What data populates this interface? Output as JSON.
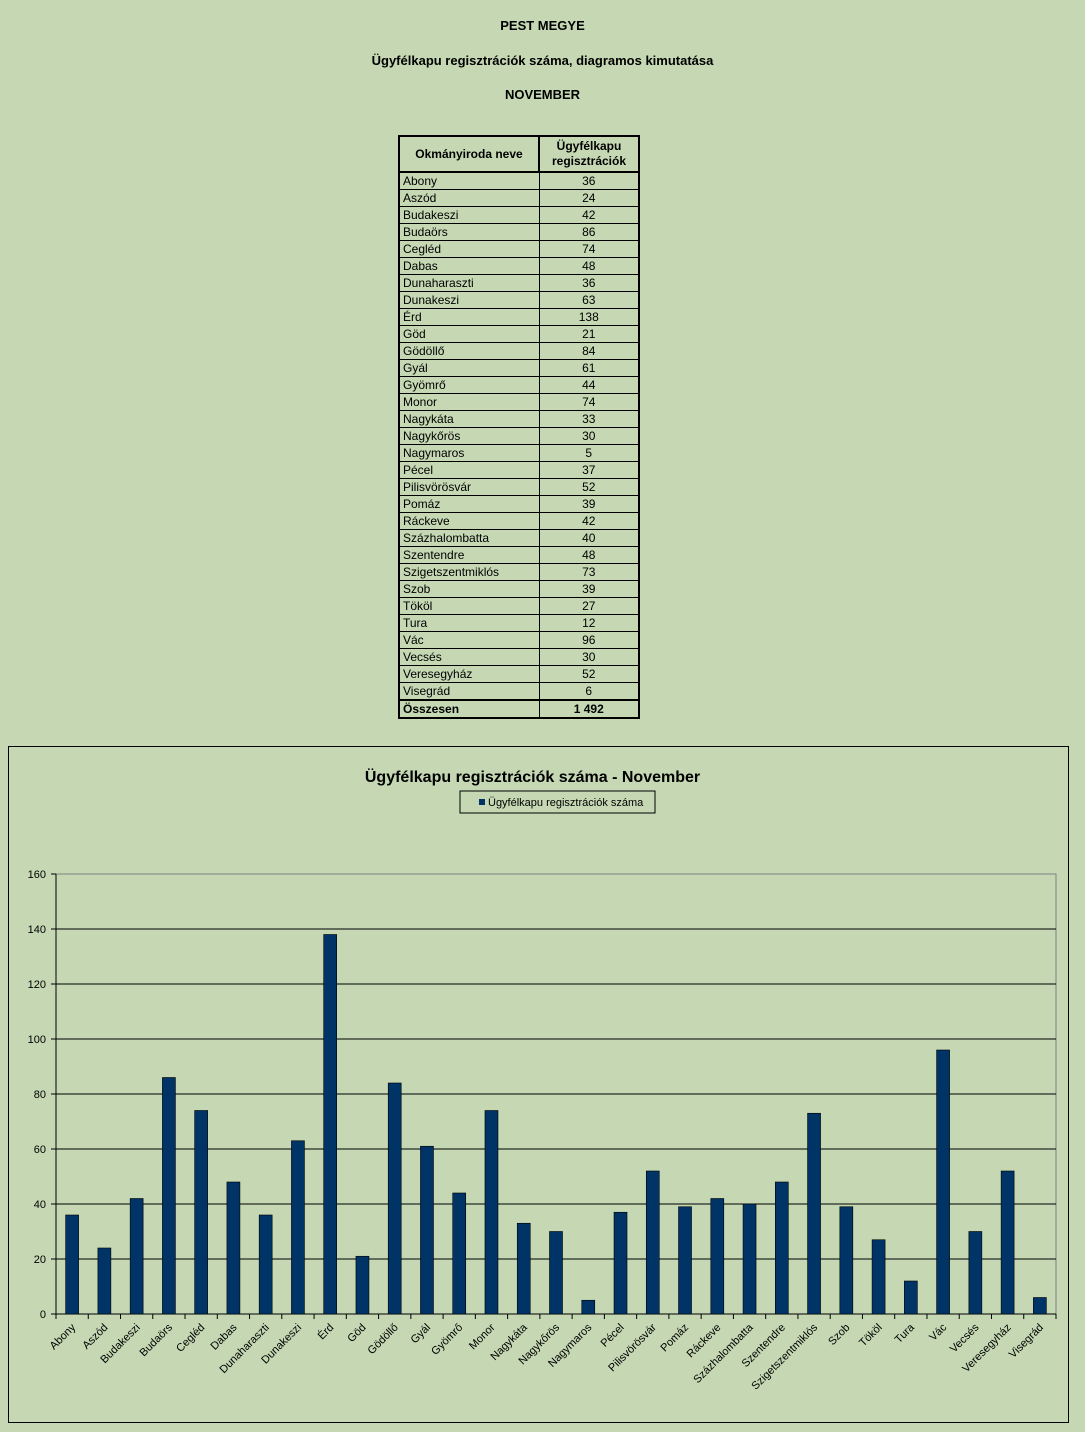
{
  "header": {
    "title1": "PEST MEGYE",
    "title2": "Ügyfélkapu regisztrációk száma, diagramos kimutatása",
    "title3": "NOVEMBER"
  },
  "table": {
    "col1": "Okmányiroda neve",
    "col2_line1": "Ügyfélkapu",
    "col2_line2": "regisztrációk",
    "total_label": "Összesen",
    "total_value": "1 492"
  },
  "chart_data": {
    "type": "bar",
    "title": "Ügyfélkapu regisztrációk száma - November",
    "legend": "Ügyfélkapu regisztrációk száma",
    "legend_position": "top",
    "xlabel": "",
    "ylabel": "",
    "ylim": [
      0,
      160
    ],
    "yticks": [
      0,
      20,
      40,
      60,
      80,
      100,
      120,
      140,
      160
    ],
    "grid": true,
    "bar_color": "#003366",
    "categories": [
      "Abony",
      "Aszód",
      "Budakeszi",
      "Budaörs",
      "Cegléd",
      "Dabas",
      "Dunaharaszti",
      "Dunakeszi",
      "Érd",
      "Göd",
      "Gödöllő",
      "Gyál",
      "Gyömrő",
      "Monor",
      "Nagykáta",
      "Nagykőrös",
      "Nagymaros",
      "Pécel",
      "Pilisvörösvár",
      "Pomáz",
      "Ráckeve",
      "Százhalombatta",
      "Szentendre",
      "Szigetszentmiklós",
      "Szob",
      "Tököl",
      "Tura",
      "Vác",
      "Vecsés",
      "Veresegyház",
      "Visegrád"
    ],
    "values": [
      36,
      24,
      42,
      86,
      74,
      48,
      36,
      63,
      138,
      21,
      84,
      61,
      44,
      74,
      33,
      30,
      5,
      37,
      52,
      39,
      42,
      40,
      48,
      73,
      39,
      27,
      12,
      96,
      30,
      52,
      6
    ]
  }
}
